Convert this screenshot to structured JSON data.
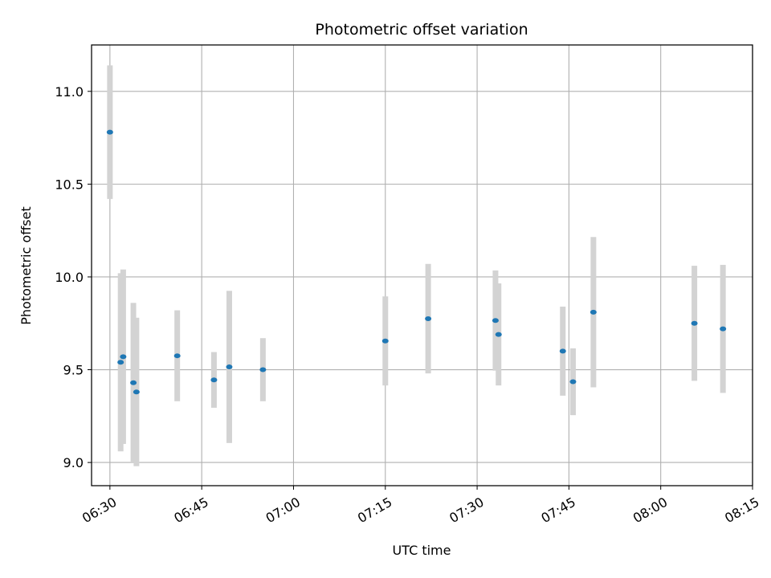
{
  "chart_data": {
    "type": "scatter",
    "title": "Photometric offset variation",
    "xlabel": "UTC time",
    "ylabel": "Photometric offset",
    "xlim": [
      "06:27",
      "08:15"
    ],
    "ylim": [
      8.875,
      11.25
    ],
    "x_ticks": [
      "06:30",
      "06:45",
      "07:00",
      "07:15",
      "07:30",
      "07:45",
      "08:00",
      "08:15"
    ],
    "y_ticks": [
      "9.0",
      "9.5",
      "10.0",
      "10.5",
      "11.0"
    ],
    "grid": true,
    "colors": {
      "marker": "#1f77b4",
      "errorbar": "#d3d3d3",
      "grid": "#b0b0b0"
    },
    "points": [
      {
        "x": "06:30:00",
        "y": 10.78,
        "err": 0.36
      },
      {
        "x": "06:31:45",
        "y": 9.54,
        "err": 0.48
      },
      {
        "x": "06:32:10",
        "y": 9.57,
        "err": 0.47
      },
      {
        "x": "06:33:50",
        "y": 9.43,
        "err": 0.43
      },
      {
        "x": "06:34:20",
        "y": 9.38,
        "err": 0.4
      },
      {
        "x": "06:41:00",
        "y": 9.575,
        "err": 0.245
      },
      {
        "x": "06:47:00",
        "y": 9.445,
        "err": 0.15
      },
      {
        "x": "06:49:30",
        "y": 9.515,
        "err": 0.41
      },
      {
        "x": "06:55:00",
        "y": 9.5,
        "err": 0.17
      },
      {
        "x": "07:15:00",
        "y": 9.655,
        "err": 0.24
      },
      {
        "x": "07:22:00",
        "y": 9.775,
        "err": 0.295
      },
      {
        "x": "07:33:00",
        "y": 9.765,
        "err": 0.27
      },
      {
        "x": "07:33:30",
        "y": 9.69,
        "err": 0.275
      },
      {
        "x": "07:44:00",
        "y": 9.6,
        "err": 0.24
      },
      {
        "x": "07:45:40",
        "y": 9.435,
        "err": 0.18
      },
      {
        "x": "07:49:00",
        "y": 9.81,
        "err": 0.405
      },
      {
        "x": "08:05:30",
        "y": 9.75,
        "err": 0.31
      },
      {
        "x": "08:10:10",
        "y": 9.72,
        "err": 0.345
      }
    ]
  }
}
